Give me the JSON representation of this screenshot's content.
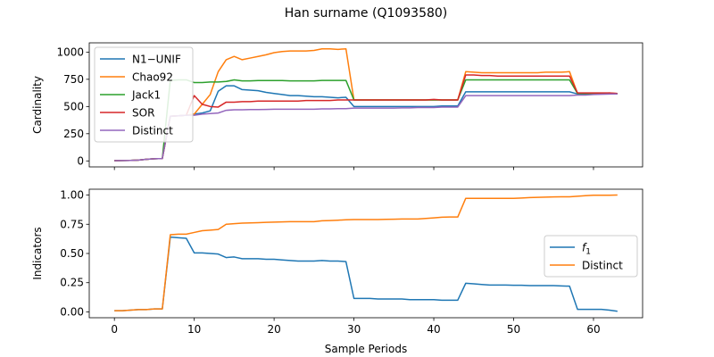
{
  "figure": {
    "title": "Han surname (Q1093580)"
  },
  "chart_data": [
    {
      "type": "line",
      "ylabel": "Cardinality",
      "xlabel": "",
      "xlim": [
        -3.15,
        66.15
      ],
      "ylim": [
        -55,
        1085
      ],
      "xticks": [
        0,
        10,
        20,
        30,
        40,
        50,
        60
      ],
      "yticks": [
        0,
        250,
        500,
        750,
        1000
      ],
      "ytick_labels": [
        "0",
        "250",
        "500",
        "750",
        "1000"
      ],
      "show_x_tick_labels": false,
      "legend": {
        "placement": "upper-left",
        "entries": [
          "N1−UNIF",
          "Chao92",
          "Jack1",
          "SOR",
          "Distinct"
        ]
      },
      "series": [
        {
          "name": "N1−UNIF",
          "color": "#1f77b4",
          "x": [
            0,
            1,
            2,
            3,
            4,
            5,
            6,
            7,
            8,
            9,
            10,
            11,
            12,
            13,
            14,
            15,
            16,
            17,
            18,
            19,
            20,
            21,
            22,
            23,
            24,
            25,
            26,
            27,
            28,
            29,
            30,
            31,
            32,
            33,
            34,
            35,
            36,
            37,
            38,
            39,
            40,
            41,
            42,
            43,
            44,
            45,
            46,
            47,
            48,
            49,
            50,
            51,
            52,
            53,
            54,
            55,
            56,
            57,
            58,
            59,
            60,
            61,
            62,
            63
          ],
          "y": [
            2,
            3,
            4,
            8,
            15,
            20,
            22,
            410,
            415,
            420,
            430,
            440,
            460,
            640,
            690,
            690,
            655,
            650,
            645,
            630,
            620,
            610,
            600,
            600,
            595,
            590,
            590,
            585,
            580,
            585,
            500,
            500,
            500,
            500,
            500,
            500,
            500,
            500,
            500,
            500,
            500,
            505,
            505,
            505,
            635,
            635,
            635,
            635,
            635,
            635,
            635,
            635,
            635,
            635,
            635,
            635,
            635,
            635,
            615,
            615,
            615,
            615,
            615,
            615
          ]
        },
        {
          "name": "Chao92",
          "color": "#ff7f0e",
          "x": [
            0,
            1,
            2,
            3,
            4,
            5,
            6,
            7,
            8,
            9,
            10,
            11,
            12,
            13,
            14,
            15,
            16,
            17,
            18,
            19,
            20,
            21,
            22,
            23,
            24,
            25,
            26,
            27,
            28,
            29,
            30,
            31,
            32,
            33,
            34,
            35,
            36,
            37,
            38,
            39,
            40,
            41,
            42,
            43,
            44,
            45,
            46,
            47,
            48,
            49,
            50,
            51,
            52,
            53,
            54,
            55,
            56,
            57,
            58,
            59,
            60,
            61,
            62,
            63
          ],
          "y": [
            2,
            3,
            4,
            8,
            15,
            20,
            22,
            410,
            415,
            420,
            430,
            520,
            610,
            820,
            930,
            960,
            930,
            945,
            960,
            975,
            995,
            1005,
            1010,
            1010,
            1010,
            1015,
            1030,
            1030,
            1025,
            1030,
            560,
            560,
            560,
            560,
            560,
            560,
            560,
            560,
            560,
            560,
            560,
            560,
            560,
            560,
            820,
            815,
            810,
            810,
            810,
            810,
            810,
            810,
            810,
            810,
            815,
            815,
            815,
            820,
            620,
            620,
            620,
            620,
            625,
            620
          ]
        },
        {
          "name": "Jack1",
          "color": "#2ca02c",
          "x": [
            0,
            1,
            2,
            3,
            4,
            5,
            6,
            7,
            8,
            9,
            10,
            11,
            12,
            13,
            14,
            15,
            16,
            17,
            18,
            19,
            20,
            21,
            22,
            23,
            24,
            25,
            26,
            27,
            28,
            29,
            30,
            31,
            32,
            33,
            34,
            35,
            36,
            37,
            38,
            39,
            40,
            41,
            42,
            43,
            44,
            45,
            46,
            47,
            48,
            49,
            50,
            51,
            52,
            53,
            54,
            55,
            56,
            57,
            58,
            59,
            60,
            61,
            62,
            63
          ],
          "y": [
            2,
            3,
            4,
            8,
            15,
            20,
            22,
            740,
            745,
            745,
            720,
            720,
            725,
            725,
            730,
            745,
            735,
            735,
            738,
            738,
            738,
            738,
            735,
            735,
            735,
            735,
            740,
            740,
            740,
            740,
            560,
            560,
            560,
            560,
            560,
            560,
            560,
            560,
            560,
            560,
            560,
            560,
            560,
            560,
            745,
            745,
            745,
            745,
            745,
            745,
            745,
            745,
            745,
            745,
            745,
            745,
            745,
            745,
            620,
            620,
            620,
            620,
            620,
            620
          ]
        },
        {
          "name": "SOR",
          "color": "#d62728",
          "x": [
            0,
            1,
            2,
            3,
            4,
            5,
            6,
            7,
            8,
            9,
            10,
            11,
            12,
            13,
            14,
            15,
            16,
            17,
            18,
            19,
            20,
            21,
            22,
            23,
            24,
            25,
            26,
            27,
            28,
            29,
            30,
            31,
            32,
            33,
            34,
            35,
            36,
            37,
            38,
            39,
            40,
            41,
            42,
            43,
            44,
            45,
            46,
            47,
            48,
            49,
            50,
            51,
            52,
            53,
            54,
            55,
            56,
            57,
            58,
            59,
            60,
            61,
            62,
            63
          ],
          "y": [
            2,
            3,
            4,
            8,
            15,
            20,
            22,
            410,
            415,
            420,
            600,
            520,
            500,
            495,
            540,
            540,
            545,
            545,
            550,
            550,
            550,
            550,
            550,
            550,
            555,
            555,
            555,
            555,
            560,
            560,
            560,
            560,
            560,
            560,
            560,
            560,
            560,
            560,
            560,
            560,
            565,
            560,
            560,
            560,
            790,
            790,
            785,
            785,
            780,
            780,
            780,
            780,
            780,
            780,
            780,
            780,
            780,
            780,
            625,
            625,
            625,
            625,
            625,
            620
          ]
        },
        {
          "name": "Distinct",
          "color": "#9467bd",
          "x": [
            0,
            1,
            2,
            3,
            4,
            5,
            6,
            7,
            8,
            9,
            10,
            11,
            12,
            13,
            14,
            15,
            16,
            17,
            18,
            19,
            20,
            21,
            22,
            23,
            24,
            25,
            26,
            27,
            28,
            29,
            30,
            31,
            32,
            33,
            34,
            35,
            36,
            37,
            38,
            39,
            40,
            41,
            42,
            43,
            44,
            45,
            46,
            47,
            48,
            49,
            50,
            51,
            52,
            53,
            54,
            55,
            56,
            57,
            58,
            59,
            60,
            61,
            62,
            63
          ],
          "y": [
            2,
            3,
            4,
            8,
            15,
            20,
            22,
            410,
            415,
            420,
            420,
            430,
            435,
            440,
            465,
            470,
            470,
            472,
            472,
            473,
            475,
            475,
            475,
            475,
            475,
            475,
            478,
            478,
            480,
            480,
            485,
            485,
            485,
            485,
            485,
            485,
            487,
            487,
            490,
            490,
            490,
            495,
            495,
            495,
            600,
            600,
            600,
            600,
            600,
            600,
            600,
            600,
            600,
            600,
            600,
            600,
            600,
            600,
            605,
            605,
            610,
            612,
            614,
            615
          ]
        }
      ]
    },
    {
      "type": "line",
      "ylabel": "Indicators",
      "xlabel": "Sample Periods",
      "xlim": [
        -3.15,
        66.15
      ],
      "ylim": [
        -0.05,
        1.05
      ],
      "xticks": [
        0,
        10,
        20,
        30,
        40,
        50,
        60
      ],
      "yticks": [
        0,
        0.25,
        0.5,
        0.75,
        1.0
      ],
      "ytick_labels": [
        "0.00",
        "0.25",
        "0.50",
        "0.75",
        "1.00"
      ],
      "show_x_tick_labels": true,
      "legend": {
        "placement": "center-right",
        "entries": [
          "f1",
          "Distinct"
        ]
      },
      "series": [
        {
          "name": "f1",
          "color": "#1f77b4",
          "x": [
            0,
            1,
            2,
            3,
            4,
            5,
            6,
            7,
            8,
            9,
            10,
            11,
            12,
            13,
            14,
            15,
            16,
            17,
            18,
            19,
            20,
            21,
            22,
            23,
            24,
            25,
            26,
            27,
            28,
            29,
            30,
            31,
            32,
            33,
            34,
            35,
            36,
            37,
            38,
            39,
            40,
            41,
            42,
            43,
            44,
            45,
            46,
            47,
            48,
            49,
            50,
            51,
            52,
            53,
            54,
            55,
            56,
            57,
            58,
            59,
            60,
            61,
            62,
            63
          ],
          "y": [
            0.01,
            0.01,
            0.015,
            0.02,
            0.02,
            0.025,
            0.025,
            0.64,
            0.635,
            0.63,
            0.505,
            0.505,
            0.5,
            0.495,
            0.465,
            0.47,
            0.455,
            0.455,
            0.455,
            0.45,
            0.45,
            0.445,
            0.44,
            0.435,
            0.435,
            0.435,
            0.44,
            0.435,
            0.435,
            0.43,
            0.115,
            0.115,
            0.115,
            0.11,
            0.11,
            0.11,
            0.11,
            0.105,
            0.105,
            0.105,
            0.105,
            0.1,
            0.1,
            0.1,
            0.245,
            0.24,
            0.235,
            0.23,
            0.23,
            0.23,
            0.228,
            0.228,
            0.225,
            0.225,
            0.225,
            0.225,
            0.222,
            0.22,
            0.022,
            0.022,
            0.022,
            0.022,
            0.015,
            0.005
          ]
        },
        {
          "name": "Distinct",
          "color": "#ff7f0e",
          "x": [
            0,
            1,
            2,
            3,
            4,
            5,
            6,
            7,
            8,
            9,
            10,
            11,
            12,
            13,
            14,
            15,
            16,
            17,
            18,
            19,
            20,
            21,
            22,
            23,
            24,
            25,
            26,
            27,
            28,
            29,
            30,
            31,
            32,
            33,
            34,
            35,
            36,
            37,
            38,
            39,
            40,
            41,
            42,
            43,
            44,
            45,
            46,
            47,
            48,
            49,
            50,
            51,
            52,
            53,
            54,
            55,
            56,
            57,
            58,
            59,
            60,
            61,
            62,
            63
          ],
          "y": [
            0.01,
            0.01,
            0.015,
            0.02,
            0.02,
            0.025,
            0.025,
            0.66,
            0.665,
            0.665,
            0.68,
            0.695,
            0.7,
            0.705,
            0.75,
            0.755,
            0.76,
            0.762,
            0.764,
            0.766,
            0.768,
            0.77,
            0.772,
            0.772,
            0.772,
            0.772,
            0.78,
            0.782,
            0.785,
            0.788,
            0.79,
            0.79,
            0.79,
            0.79,
            0.792,
            0.793,
            0.795,
            0.795,
            0.795,
            0.8,
            0.805,
            0.81,
            0.812,
            0.812,
            0.972,
            0.972,
            0.972,
            0.972,
            0.972,
            0.972,
            0.972,
            0.975,
            0.978,
            0.98,
            0.982,
            0.984,
            0.985,
            0.985,
            0.99,
            0.995,
            0.998,
            0.998,
            0.998,
            1.0
          ]
        }
      ]
    }
  ]
}
